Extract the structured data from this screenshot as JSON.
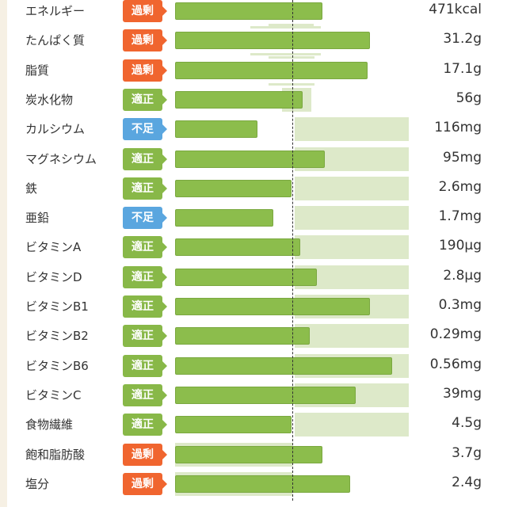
{
  "chart_data": {
    "type": "bar",
    "unit": "percent of recommended intake (dashed line = 100)",
    "status_colors": {
      "過剰": "#f0652f",
      "適正": "#88b848",
      "不足": "#5aa6df"
    },
    "rows": [
      {
        "name": "エネルギー",
        "status": "過剰",
        "value": "471kcal",
        "pct": 126,
        "range": [
          80,
          118
        ]
      },
      {
        "name": "たんぱく質",
        "status": "過剰",
        "value": "31.2g",
        "pct": 166,
        "range": [
          64,
          124
        ]
      },
      {
        "name": "脂質",
        "status": "過剰",
        "value": "17.1g",
        "pct": 164,
        "range": [
          80,
          119
        ]
      },
      {
        "name": "炭水化物",
        "status": "適正",
        "value": "56g",
        "pct": 109,
        "range": [
          91,
          116
        ]
      },
      {
        "name": "カルシウム",
        "status": "不足",
        "value": "116mg",
        "pct": 70,
        "range": [
          102,
          199
        ]
      },
      {
        "name": "マグネシウム",
        "status": "適正",
        "value": "95mg",
        "pct": 128,
        "range": [
          102,
          199
        ]
      },
      {
        "name": "鉄",
        "status": "適正",
        "value": "2.6mg",
        "pct": 99,
        "range": [
          102,
          199
        ]
      },
      {
        "name": "亜鉛",
        "status": "不足",
        "value": "1.7mg",
        "pct": 84,
        "range": [
          102,
          199
        ]
      },
      {
        "name": "ビタミンA",
        "status": "適正",
        "value": "190μg",
        "pct": 107,
        "range": [
          102,
          199
        ]
      },
      {
        "name": "ビタミンD",
        "status": "適正",
        "value": "2.8μg",
        "pct": 121,
        "range": [
          102,
          199
        ]
      },
      {
        "name": "ビタミンB1",
        "status": "適正",
        "value": "0.3mg",
        "pct": 166,
        "range": [
          102,
          199
        ]
      },
      {
        "name": "ビタミンB2",
        "status": "適正",
        "value": "0.29mg",
        "pct": 115,
        "range": [
          102,
          199
        ]
      },
      {
        "name": "ビタミンB6",
        "status": "適正",
        "value": "0.56mg",
        "pct": 185,
        "range": [
          102,
          199
        ]
      },
      {
        "name": "ビタミンC",
        "status": "適正",
        "value": "39mg",
        "pct": 154,
        "range": [
          102,
          199
        ]
      },
      {
        "name": "食物繊維",
        "status": "適正",
        "value": "4.5g",
        "pct": 99,
        "range": [
          102,
          199
        ]
      },
      {
        "name": "飽和脂肪酸",
        "status": "過剰",
        "value": "3.7g",
        "pct": 126,
        "range": [
          0,
          100
        ]
      },
      {
        "name": "塩分",
        "status": "過剰",
        "value": "2.4g",
        "pct": 149,
        "range": [
          0,
          100
        ]
      }
    ]
  }
}
